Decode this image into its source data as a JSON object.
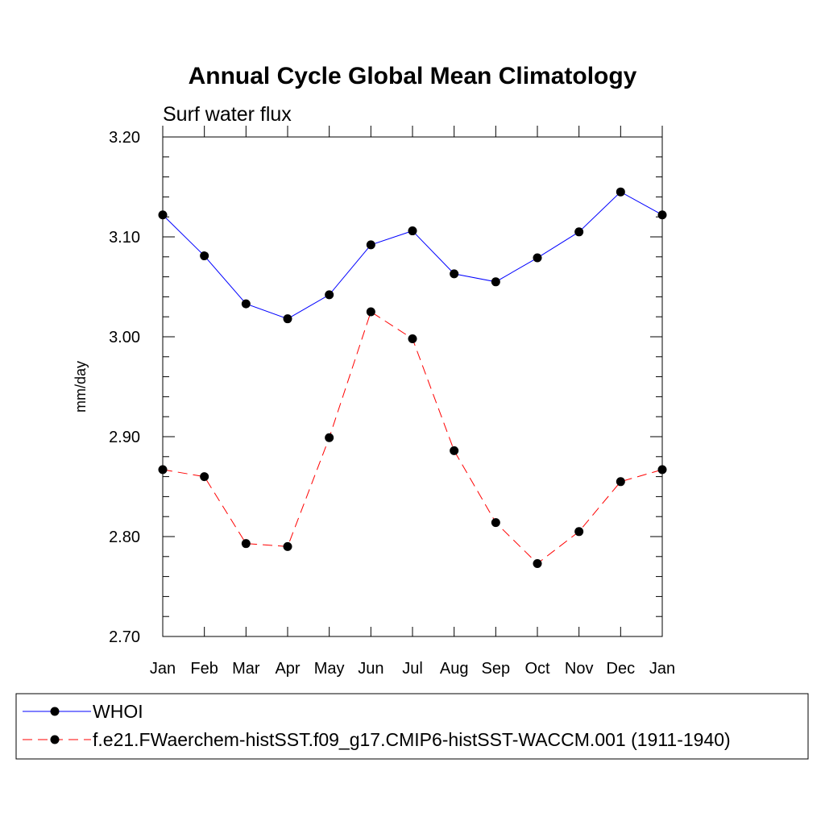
{
  "chart_data": {
    "type": "line",
    "title": "Annual Cycle Global Mean Climatology",
    "subtitle": "Surf water flux",
    "ylabel": "mm/day",
    "xlabel": "",
    "categories": [
      "Jan",
      "Feb",
      "Mar",
      "Apr",
      "May",
      "Jun",
      "Jul",
      "Aug",
      "Sep",
      "Oct",
      "Nov",
      "Dec",
      "Jan"
    ],
    "ylim": [
      2.7,
      3.2
    ],
    "yticks": [
      "2.70",
      "2.80",
      "2.90",
      "3.00",
      "3.10",
      "3.20"
    ],
    "grid": false,
    "legend_position": "bottom",
    "series": [
      {
        "name": "WHOI",
        "color": "#0000ff",
        "dash": "solid",
        "values": [
          3.122,
          3.081,
          3.033,
          3.018,
          3.042,
          3.092,
          3.106,
          3.063,
          3.055,
          3.079,
          3.105,
          3.145,
          3.122
        ]
      },
      {
        "name": "f.e21.FWaerchem-histSST.f09_g17.CMIP6-histSST-WACCM.001 (1911-1940)",
        "color": "#ff0000",
        "dash": "dashed",
        "values": [
          2.867,
          2.86,
          2.793,
          2.79,
          2.899,
          3.025,
          2.998,
          2.886,
          2.814,
          2.773,
          2.805,
          2.855,
          2.867
        ]
      }
    ]
  }
}
